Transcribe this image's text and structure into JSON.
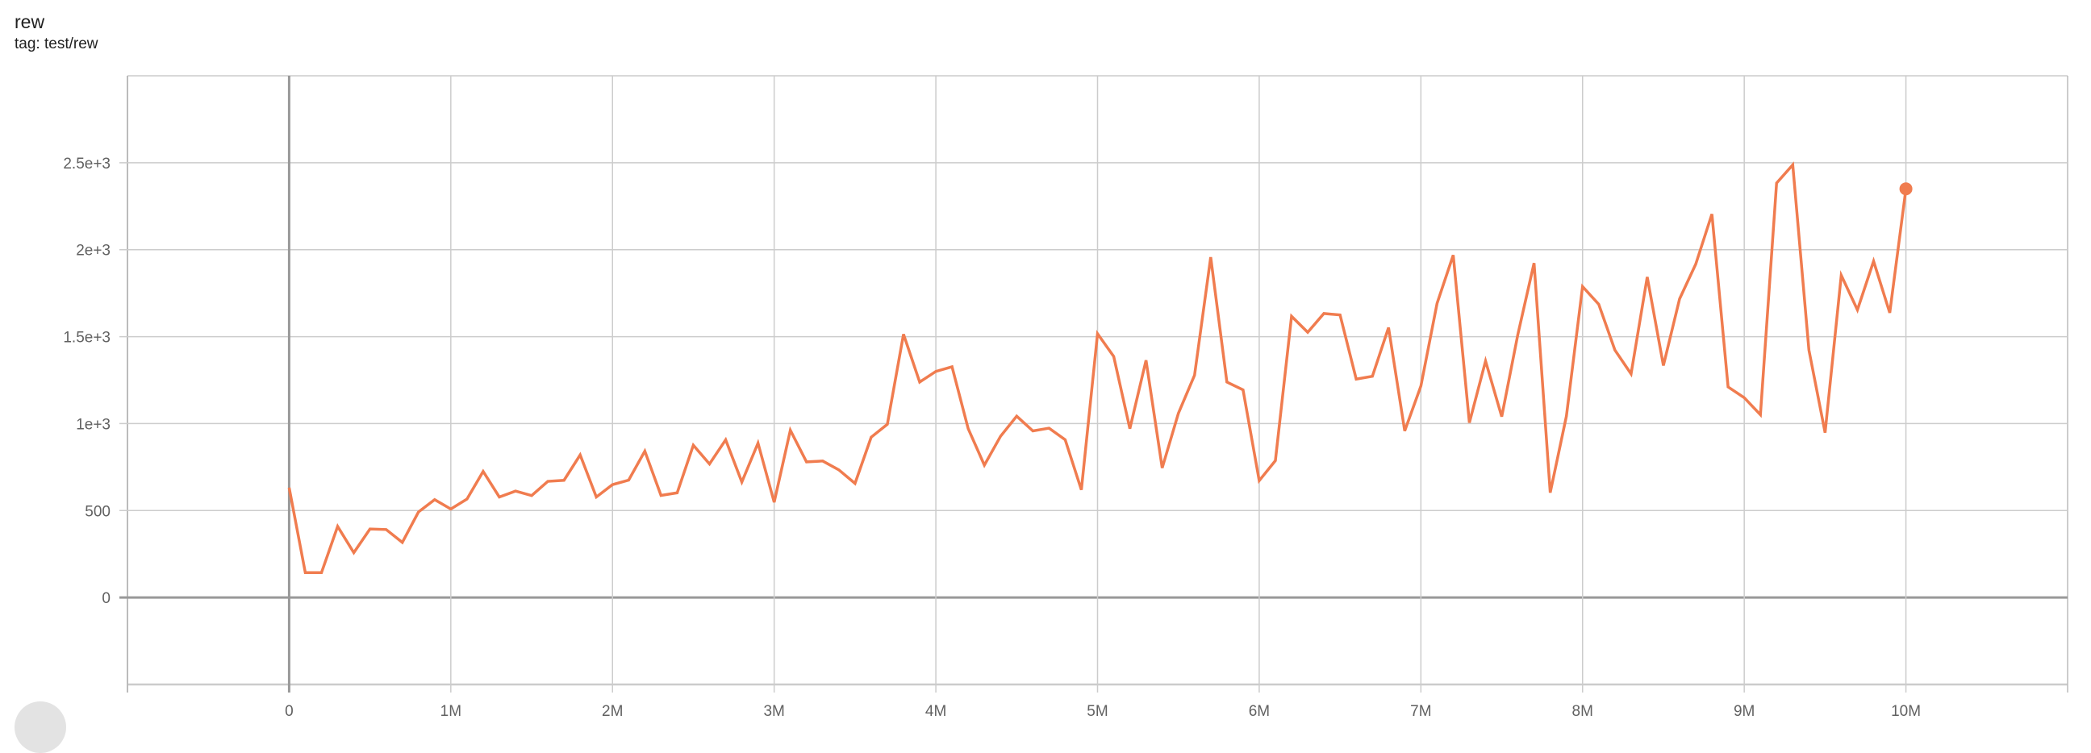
{
  "header": {
    "title": "rew",
    "subtitle": "tag: test/rew"
  },
  "colors": {
    "series": "#f07c4f",
    "grid": "#cccccc",
    "axis": "#999999",
    "text": "#616161"
  },
  "chart_data": {
    "type": "line",
    "title": "rew",
    "subtitle": "tag: test/rew",
    "xlabel": "",
    "ylabel": "",
    "xlim": [
      -1000000,
      11000000
    ],
    "ylim": [
      -500,
      3000
    ],
    "grid": true,
    "legend": "none",
    "x_ticks": [
      {
        "value": 0,
        "label": "0"
      },
      {
        "value": 1000000,
        "label": "1M"
      },
      {
        "value": 2000000,
        "label": "2M"
      },
      {
        "value": 3000000,
        "label": "3M"
      },
      {
        "value": 4000000,
        "label": "4M"
      },
      {
        "value": 5000000,
        "label": "5M"
      },
      {
        "value": 6000000,
        "label": "6M"
      },
      {
        "value": 7000000,
        "label": "7M"
      },
      {
        "value": 8000000,
        "label": "8M"
      },
      {
        "value": 9000000,
        "label": "9M"
      },
      {
        "value": 10000000,
        "label": "10M"
      }
    ],
    "y_ticks": [
      {
        "value": 0,
        "label": "0"
      },
      {
        "value": 500,
        "label": "500"
      },
      {
        "value": 1000,
        "label": "1e+3"
      },
      {
        "value": 1500,
        "label": "1.5e+3"
      },
      {
        "value": 2000,
        "label": "2e+3"
      },
      {
        "value": 2500,
        "label": "2.5e+3"
      }
    ],
    "x_step": 100000,
    "values": [
      632,
      143,
      143,
      409,
      258,
      394,
      391,
      317,
      492,
      563,
      509,
      566,
      725,
      578,
      612,
      586,
      668,
      674,
      820,
      578,
      649,
      675,
      842,
      587,
      602,
      876,
      768,
      907,
      664,
      888,
      548,
      962,
      780,
      785,
      734,
      656,
      922,
      996,
      1514,
      1239,
      1300,
      1327,
      971,
      761,
      927,
      1043,
      958,
      974,
      907,
      619,
      1517,
      1386,
      971,
      1364,
      745,
      1059,
      1278,
      1957,
      1239,
      1194,
      672,
      787,
      1617,
      1525,
      1633,
      1625,
      1256,
      1272,
      1552,
      958,
      1216,
      1691,
      1969,
      1005,
      1360,
      1040,
      1514,
      1923,
      603,
      1043,
      1788,
      1686,
      1423,
      1286,
      1843,
      1334,
      1717,
      1917,
      2205,
      1211,
      1149,
      1051,
      2383,
      2488,
      1423,
      948,
      1853,
      1654,
      1934,
      1637,
      2350
    ]
  }
}
